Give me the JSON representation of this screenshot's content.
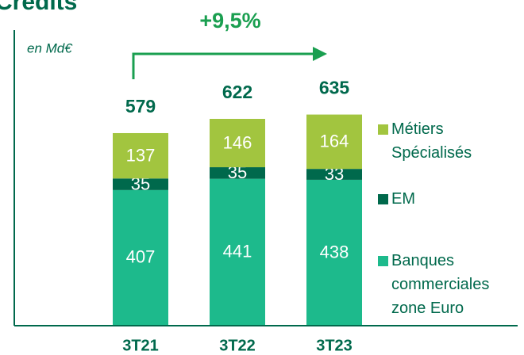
{
  "chart_data": {
    "type": "stacked_bar",
    "title": "Crédits",
    "unit_label": "en Md€",
    "annotation": "+9,5%",
    "categories": [
      "3T21",
      "3T22",
      "3T23"
    ],
    "series": [
      {
        "name": "Banques commerciales zone Euro",
        "color": "#1dba8c",
        "values": [
          407,
          441,
          438
        ]
      },
      {
        "name": "EM",
        "color": "#00694c",
        "values": [
          35,
          35,
          33
        ]
      },
      {
        "name": "Métiers Spécialisés",
        "color": "#a2c53f",
        "values": [
          137,
          146,
          164
        ]
      }
    ],
    "totals": [
      579,
      622,
      635
    ]
  }
}
